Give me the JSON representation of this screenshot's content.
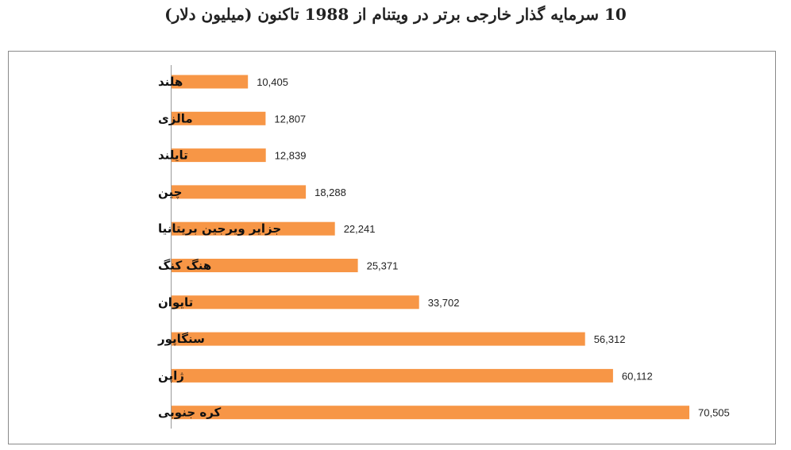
{
  "chart_data": {
    "type": "bar",
    "orientation": "horizontal",
    "title": "10 سرمایه گذار خارجی برتر در ویتنام از 1988 تاکنون (میلیون دلار)",
    "categories": [
      "هلند",
      "مالزی",
      "تایلند",
      "چین",
      "جزایر ویرجین بریتانیا",
      "هنگ کنگ",
      "تایوان",
      "سنگاپور",
      "ژاپن",
      "کره جنوبی"
    ],
    "values": [
      10405,
      12807,
      12839,
      18288,
      22241,
      25371,
      33702,
      56312,
      60112,
      70505
    ],
    "value_labels": [
      "10,405",
      "12,807",
      "12,839",
      "18,288",
      "22,241",
      "25,371",
      "33,702",
      "56,312",
      "60,112",
      "70,505"
    ],
    "xlabel": "",
    "ylabel": "",
    "xlim": [
      0,
      70505
    ],
    "grid": false,
    "legend": "none",
    "bar_color": "#F79646"
  }
}
